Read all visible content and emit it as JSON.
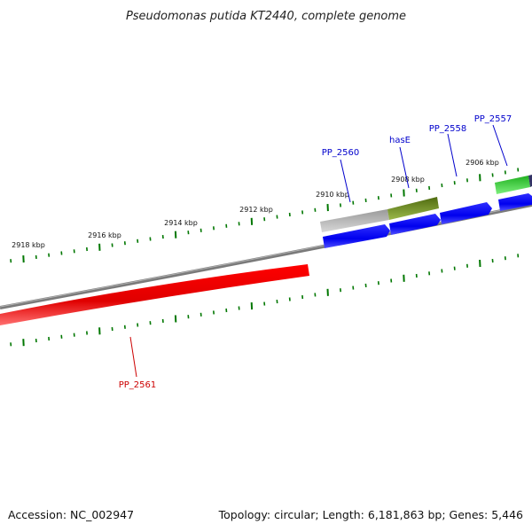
{
  "title": "Pseudomonas putida KT2440, complete genome",
  "footer": {
    "accession": "Accession: NC_002947",
    "summary": "Topology: circular; Length: 6,181,863 bp; Genes: 5,446"
  },
  "ruler": {
    "labels": [
      "2918 kbp",
      "2916 kbp",
      "2914 kbp",
      "2912 kbp",
      "2910 kbp",
      "2908 kbp",
      "2906 kbp"
    ]
  },
  "genes": [
    {
      "name": "PP_2561",
      "color": "#cc0000"
    },
    {
      "name": "PP_2560",
      "color": "#0000cc"
    },
    {
      "name": "hasE",
      "color": "#0000cc"
    },
    {
      "name": "PP_2558",
      "color": "#0000cc"
    },
    {
      "name": "PP_2557",
      "color": "#0000cc"
    }
  ],
  "colors": {
    "backbone": "#808080",
    "forward_gene": "#0000ff",
    "reverse_gene": "#ff0000",
    "ticks": "#007700",
    "feature_grey": "#b0b0b0",
    "feature_olive": "#6b8e23",
    "feature_green": "#33cc33"
  }
}
